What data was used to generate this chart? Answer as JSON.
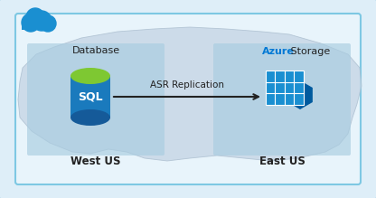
{
  "bg_outer": "#deeef8",
  "bg_border": "#7ec8e3",
  "bg_inner": "#e8f4fb",
  "map_color": "#c5d5e5",
  "map_edge": "#aabdce",
  "west_box_color": "#a8cce0",
  "east_box_color": "#a8cce0",
  "cloud_color": "#1a8fd1",
  "sql_body_color": "#1a7abd",
  "sql_body_dark": "#155a99",
  "sql_top_color": "#7ec832",
  "sql_text": "SQL",
  "arrow_color": "#222222",
  "arrow_label": "ASR Replication",
  "west_label": "West US",
  "east_label": "East US",
  "db_label": "Database",
  "storage_label_azure": "Azure",
  "storage_label_rest": " Storage",
  "azure_blue": "#0078d4",
  "storage_box_color": "#1a8fd1",
  "storage_hex_color": "#005a9e",
  "title_color": "#222222",
  "figsize": [
    4.16,
    2.19
  ],
  "dpi": 100
}
